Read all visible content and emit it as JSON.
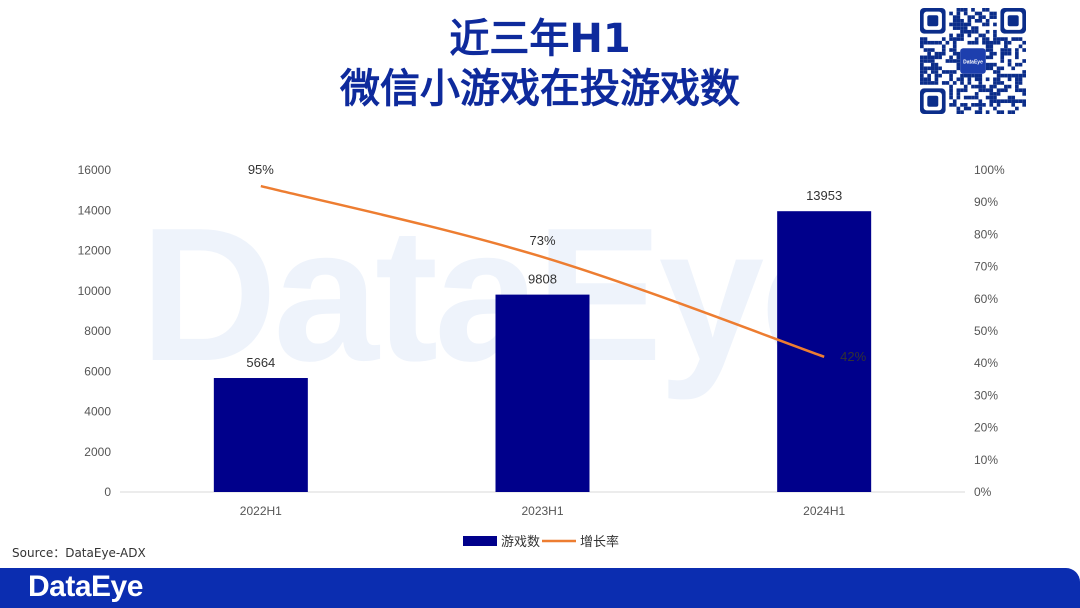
{
  "title_line1": "近三年H1",
  "title_line2": "微信小游戏在投游戏数",
  "watermark_text": "DataEye",
  "qr_logo_text": "DataEye",
  "source": "Source：DataEye-ADX",
  "footer_logo": "DataEye",
  "colors": {
    "title": "#0e2a9c",
    "bar": "#00008b",
    "line": "#ed7d31",
    "footer": "#0b2db0"
  },
  "chart_data": {
    "type": "bar",
    "categories": [
      "2022H1",
      "2023H1",
      "2024H1"
    ],
    "series": [
      {
        "name": "游戏数",
        "type": "bar",
        "axis": "left",
        "values": [
          5664,
          9808,
          13953
        ]
      },
      {
        "name": "增长率",
        "type": "line",
        "axis": "right",
        "values": [
          95,
          73,
          42
        ]
      }
    ],
    "data_labels": {
      "bars": [
        "5664",
        "9808",
        "13953"
      ],
      "line": [
        "95%",
        "73%",
        "42%"
      ]
    },
    "left_axis": {
      "min": 0,
      "max": 16000,
      "ticks": [
        "0",
        "2000",
        "4000",
        "6000",
        "8000",
        "10000",
        "12000",
        "14000",
        "16000"
      ]
    },
    "right_axis": {
      "min": 0,
      "max": 100,
      "ticks": [
        "0%",
        "10%",
        "20%",
        "30%",
        "40%",
        "50%",
        "60%",
        "70%",
        "80%",
        "90%",
        "100%"
      ]
    },
    "legend": {
      "position": "bottom",
      "items": [
        "游戏数",
        "增长率"
      ]
    },
    "grid": false
  }
}
